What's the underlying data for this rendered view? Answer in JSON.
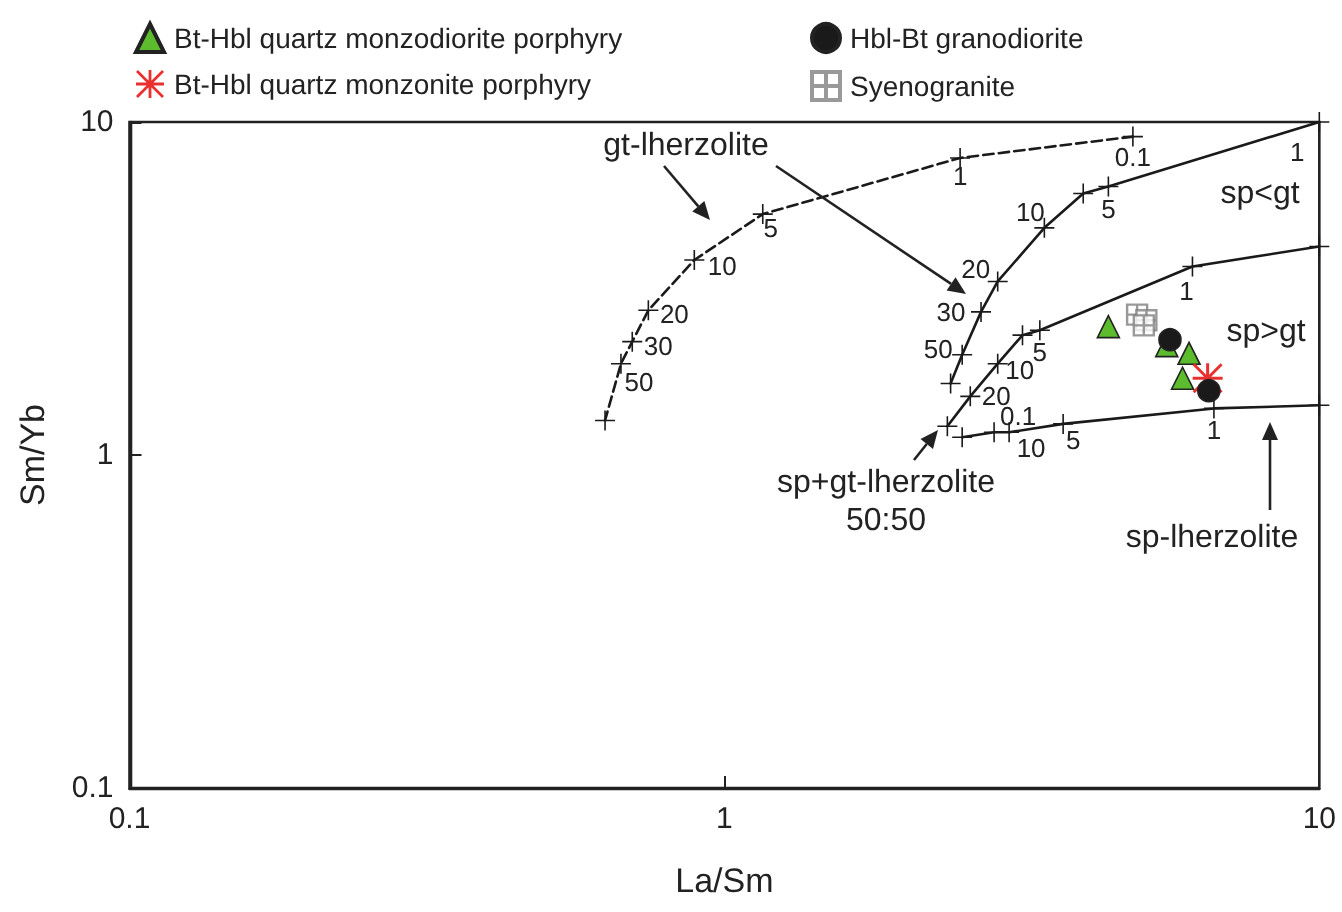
{
  "chart_data": {
    "type": "scatter",
    "xlabel": "La/Sm",
    "ylabel": "Sm/Yb",
    "log": "xy",
    "xlim": [
      0.1,
      10
    ],
    "xticks": [
      0.1,
      1,
      10
    ],
    "ylim": [
      0.1,
      10
    ],
    "yticks": [
      0.1,
      1,
      10
    ],
    "grid": false,
    "legend": "top",
    "series": [
      {
        "name": "Bt-Hbl quartz monzodiorite porphyry",
        "color": "#5dbb2e",
        "marker": "triangle",
        "x": [
          4.42,
          5.54,
          6.04,
          5.89
        ],
        "values": [
          2.43,
          2.13,
          2.02,
          1.7
        ]
      },
      {
        "name": "Bt-Hbl quartz monzonite porphyry",
        "color": "#e8312f",
        "marker": "star",
        "x": [
          6.49
        ],
        "values": [
          1.7
        ]
      },
      {
        "name": "Hbl-Bt granodiorite",
        "color": "#1a1a1a",
        "marker": "circle",
        "x": [
          5.61,
          6.52
        ],
        "values": [
          2.22,
          1.56
        ]
      },
      {
        "name": "Syenogranite",
        "color": "#808080",
        "marker": "cross",
        "x": [
          4.94,
          5.12,
          5.07
        ],
        "values": [
          2.64,
          2.54,
          2.45
        ]
      },
      {
        "type": "line",
        "color": "#1a1a1a",
        "marker": "cross",
        "line_style": "dashed",
        "x": [
          4.86,
          2.49,
          1.16,
          0.89,
          0.745,
          0.7,
          0.67,
          0.63
        ],
        "values": [
          9.04,
          7.8,
          5.29,
          3.85,
          2.72,
          2.19,
          1.88,
          1.27
        ]
      },
      {
        "type": "line",
        "color": "#1a1a1a",
        "marker": "cross",
        "line_style": "solid",
        "x": [
          10,
          4.42,
          4.01,
          3.45,
          2.88,
          2.7,
          2.51,
          2.4
        ],
        "values": [
          10,
          6.4,
          6.1,
          4.81,
          3.32,
          2.69,
          2.0,
          1.64
        ]
      },
      {
        "type": "line",
        "color": "#1a1a1a",
        "marker": "cross",
        "line_style": "solid",
        "x": [
          10,
          6.12,
          3.39,
          3.17,
          2.88,
          2.59,
          2.37
        ],
        "values": [
          4.23,
          3.68,
          2.37,
          2.29,
          1.88,
          1.5,
          1.22
        ]
      },
      {
        "type": "line",
        "color": "#1a1a1a",
        "marker": "cross",
        "line_style": "solid",
        "x": [
          10,
          6.65,
          3.71,
          3.01,
          2.84,
          2.51
        ],
        "values": [
          1.41,
          1.38,
          1.24,
          1.17,
          1.17,
          1.13
        ]
      }
    ],
    "annotations": [
      "gt-lherzolite",
      "sp+gt-lherzolite\n50:50",
      "sp-lherzolite",
      "sp<gt",
      "sp>gt",
      {
        "text": "0.1",
        "x": 4.86,
        "y": 9.04
      },
      {
        "text": "1",
        "x": 2.49,
        "y": 7.8
      },
      {
        "text": "5",
        "x": 1.16,
        "y": 5.29
      },
      {
        "text": "10",
        "x": 0.89,
        "y": 3.85
      },
      {
        "text": "20",
        "x": 0.745,
        "y": 2.72
      },
      {
        "text": "30",
        "x": 0.7,
        "y": 2.19
      },
      {
        "text": "50",
        "x": 0.67,
        "y": 1.88
      },
      {
        "text": "1",
        "x": 10,
        "y": 10
      },
      {
        "text": "5",
        "x": 4.42,
        "y": 6.4
      },
      {
        "text": "10",
        "x": 3.45,
        "y": 4.81
      },
      {
        "text": "20",
        "x": 2.88,
        "y": 3.32
      },
      {
        "text": "30",
        "x": 2.7,
        "y": 2.69
      },
      {
        "text": "50",
        "x": 2.51,
        "y": 2.0
      },
      {
        "text": "1",
        "x": 6.12,
        "y": 3.68
      },
      {
        "text": "5",
        "x": 3.39,
        "y": 2.37
      },
      {
        "text": "10",
        "x": 2.88,
        "y": 1.88
      },
      {
        "text": "20",
        "x": 2.59,
        "y": 1.5
      },
      {
        "text": "0.1",
        "x": 2.84,
        "y": 1.17
      },
      {
        "text": "10",
        "x": 3.01,
        "y": 1.17
      },
      {
        "text": "5",
        "x": 3.71,
        "y": 1.24
      },
      {
        "text": "1",
        "x": 6.65,
        "y": 1.38
      }
    ]
  }
}
